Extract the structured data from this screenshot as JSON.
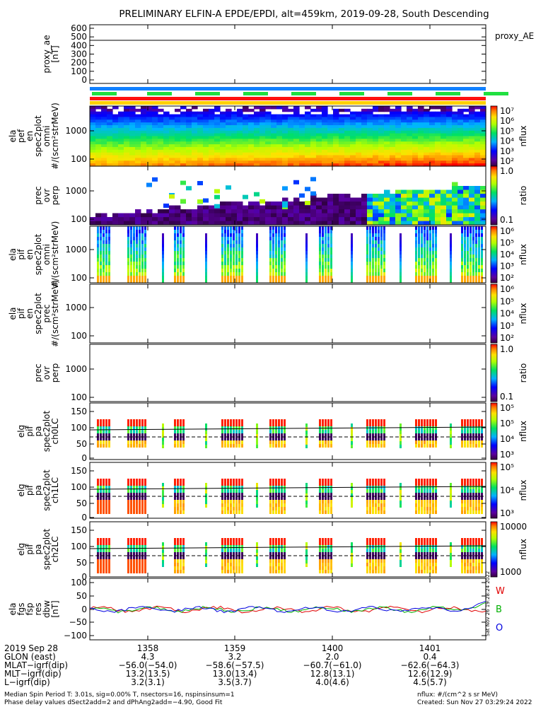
{
  "title": "PRELIMINARY ELFIN-A EPDE/EPDI, alt=459km, 2019-09-28, South Descending",
  "chart_data": {
    "type": "heatmap",
    "x_ticks": [
      "1358",
      "1359",
      "1400",
      "1401"
    ],
    "panels": [
      {
        "id": "proxy_ae",
        "ylabel": [
          "proxy_ae",
          "[nT]"
        ],
        "yticks": [
          "600",
          "500",
          "400",
          "300",
          "200",
          "100",
          "0"
        ],
        "right_label": "proxy_AE",
        "line_value": 460
      },
      {
        "id": "ela_pef_en_omni",
        "ylabel": [
          "ela",
          "pef",
          "en",
          "spec2plot",
          "omni",
          "#/(scm²strMeV)"
        ],
        "yticks": [
          "1000",
          "100"
        ],
        "colorbar": {
          "ticks": [
            "10⁷",
            "10⁶",
            "10⁵",
            "10⁴",
            "10³",
            "10²"
          ],
          "label": "nflux"
        }
      },
      {
        "id": "prec_ovr_perp_e",
        "ylabel": [
          "prec",
          "ovr",
          "perp"
        ],
        "yticks": [
          "1000",
          "100"
        ],
        "colorbar": {
          "ticks": [
            "1.0",
            "0.1"
          ],
          "label": "ratio"
        }
      },
      {
        "id": "ela_pif_en_omni",
        "ylabel": [
          "ela",
          "pif",
          "en",
          "spec2plot",
          "omni",
          "#/(scm²strMeV)"
        ],
        "yticks": [
          "1000",
          "100"
        ],
        "colorbar": {
          "ticks": [
            "10⁶",
            "10⁵",
            "10⁴",
            "10³",
            "10²"
          ],
          "label": "nflux"
        }
      },
      {
        "id": "ela_pif_en_prec",
        "ylabel": [
          "ela",
          "pif",
          "en",
          "spec2plot",
          "prec",
          "#/(scm²strMeV)"
        ],
        "yticks": [
          "1000",
          "100"
        ],
        "colorbar": {
          "ticks": [
            "10⁶",
            "10⁵",
            "10⁴",
            "10³",
            "10²"
          ],
          "label": "nflux"
        }
      },
      {
        "id": "prec_ovr_perp_i",
        "ylabel": [
          "prec",
          "ovr",
          "perp"
        ],
        "yticks": [
          "1000",
          "100"
        ],
        "colorbar": {
          "ticks": [
            "1.0",
            "0.1"
          ],
          "label": "ratio"
        }
      },
      {
        "id": "pa_ch0LC",
        "ylabel": [
          "elg",
          "pif",
          "pa",
          "spec2plot",
          "ch0LC"
        ],
        "yticks": [
          "150",
          "100",
          "50",
          "0"
        ],
        "colorbar": {
          "ticks": [
            "10⁵",
            "10⁵",
            "10⁴",
            "10³"
          ],
          "label": "nflux"
        }
      },
      {
        "id": "pa_ch1LC",
        "ylabel": [
          "elg",
          "pif",
          "pa",
          "spec2plot",
          "ch1LC"
        ],
        "yticks": [
          "150",
          "100",
          "50",
          "0"
        ],
        "colorbar": {
          "ticks": [
            "10⁵",
            "10⁴",
            "10³"
          ],
          "label": "nflux"
        }
      },
      {
        "id": "pa_ch2LC",
        "ylabel": [
          "elg",
          "pif",
          "pa",
          "spec2plot",
          "ch2LC"
        ],
        "yticks": [
          "150",
          "100",
          "50",
          "0"
        ],
        "colorbar": {
          "ticks": [
            "10000",
            "1000"
          ],
          "label": "nflux"
        }
      },
      {
        "id": "fgs_res_dbw",
        "ylabel": [
          "ela",
          "fgs",
          "fsp",
          "res",
          "dbw",
          "[nT]"
        ],
        "yticks": [
          "100",
          "50",
          "0",
          "−50",
          "−100"
        ],
        "legend": [
          "W",
          "B",
          "O"
        ],
        "legend_colors": [
          "#e00000",
          "#00b000",
          "#0000e0"
        ]
      }
    ]
  },
  "footer": {
    "left_rows": [
      {
        "label": "2019 Sep 28",
        "values": [
          "1358",
          "1359",
          "1400",
          "1401"
        ]
      },
      {
        "label": "GLON (east)",
        "values": [
          "4.3",
          "3.2",
          "2.0",
          "0.4"
        ]
      },
      {
        "label": "MLAT−igrf(dip)",
        "values": [
          "−56.0(−54.0)",
          "−58.6(−57.5)",
          "−60.7(−61.0)",
          "−62.6(−64.3)"
        ]
      },
      {
        "label": "MLT−igrf(dip)",
        "values": [
          "13.2(13.5)",
          "13.0(13.4)",
          "12.8(13.1)",
          "12.6(12.9)"
        ]
      },
      {
        "label": "L−igrf(dip)",
        "values": [
          "3.2(3.1)",
          "3.5(3.7)",
          "4.0(4.6)",
          "4.5(5.7)"
        ]
      }
    ],
    "note1": "Median Spin Period T: 3.01s, sig=0.00% T, nsectors=16, nspinsinsum=1",
    "note2": "Phase delay values dSect2add=2 and dPhAng2add=−4.90, Good Fit",
    "unit_note": "nflux: #/(cm^2 s sr MeV)",
    "created": "Created: Sun Nov 27 03:29:24 2022",
    "side_stamp": "Sat Nov 26 19:28:24 2022"
  }
}
